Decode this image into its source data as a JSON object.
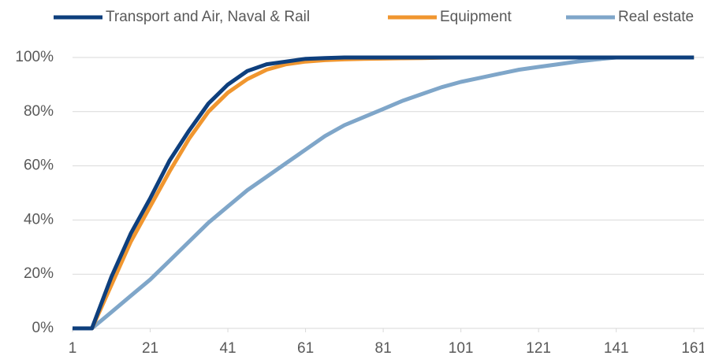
{
  "chart_data": {
    "type": "line",
    "x": [
      1,
      6,
      11,
      16,
      21,
      26,
      31,
      36,
      41,
      46,
      51,
      56,
      61,
      66,
      71,
      76,
      81,
      86,
      91,
      96,
      101,
      106,
      111,
      116,
      121,
      126,
      131,
      136,
      141,
      146,
      151,
      156,
      161
    ],
    "series": [
      {
        "name": "Transport and Air, Naval & Rail",
        "color": "#0e3f7d",
        "values": [
          0,
          0,
          19,
          35,
          48,
          62,
          73,
          83,
          90,
          95,
          97.5,
          98.5,
          99.5,
          99.8,
          100,
          100,
          100,
          100,
          100,
          100,
          100,
          100,
          100,
          100,
          100,
          100,
          100,
          100,
          100,
          100,
          100,
          100,
          100
        ]
      },
      {
        "name": "Equipment",
        "color": "#f0962f",
        "values": [
          0,
          0,
          16,
          32,
          45,
          58,
          70,
          80,
          87,
          92,
          95.5,
          97.5,
          98.5,
          99,
          99.3,
          99.5,
          99.6,
          99.7,
          99.8,
          99.9,
          100,
          100,
          100,
          100,
          100,
          100,
          100,
          100,
          100,
          100,
          100,
          100,
          100
        ]
      },
      {
        "name": "Real estate",
        "color": "#7fa6c9",
        "values": [
          0,
          0,
          6,
          12,
          18,
          25,
          32,
          39,
          45,
          51,
          56,
          61,
          66,
          71,
          75,
          78,
          81,
          84,
          86.5,
          89,
          91,
          92.5,
          94,
          95.5,
          96.5,
          97.5,
          98.5,
          99.3,
          100,
          100,
          100,
          100,
          100
        ]
      }
    ],
    "xlim": [
      1,
      163.6
    ],
    "xticks": [
      1,
      21,
      41,
      61,
      81,
      101,
      121,
      141,
      161
    ],
    "ylim": [
      0,
      100
    ],
    "yticks": [
      {
        "value": 0,
        "label": "0%"
      },
      {
        "value": 20,
        "label": "20%"
      },
      {
        "value": 40,
        "label": "40%"
      },
      {
        "value": 60,
        "label": "60%"
      },
      {
        "value": 80,
        "label": "80%"
      },
      {
        "value": 100,
        "label": "100%"
      }
    ],
    "grid": true,
    "legend": "top"
  }
}
